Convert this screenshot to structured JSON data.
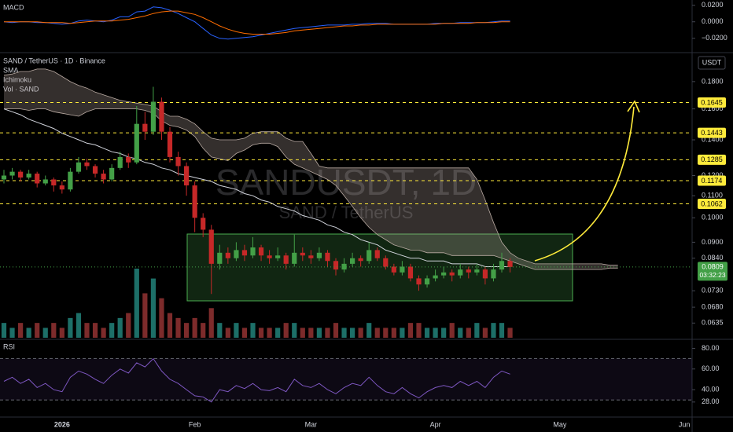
{
  "chart_data": [
    {
      "type": "line",
      "title": "MACD",
      "ylim": [
        -0.0345,
        0.0245
      ],
      "yticks": [
        {
          "value": 0.02,
          "label": "0.0200"
        },
        {
          "value": 0,
          "label": "0.0000"
        },
        {
          "value": -0.02,
          "label": "−0.0200"
        }
      ],
      "series": [
        {
          "color": "#2962ff",
          "values": [
            0,
            -0.001,
            0,
            0,
            -0.001,
            -0.001,
            -0.002,
            -0.003,
            -0.002,
            0.001,
            0.002,
            0.001,
            0,
            0.002,
            0.006,
            0.006,
            0.012,
            0.013,
            0.018,
            0.017,
            0.014,
            0.01,
            0.005,
            0,
            -0.008,
            -0.016,
            -0.02,
            -0.021,
            -0.02,
            -0.019,
            -0.018,
            -0.016,
            -0.014,
            -0.012,
            -0.01,
            -0.008,
            -0.007,
            -0.006,
            -0.005,
            -0.004,
            -0.004,
            -0.004,
            -0.003,
            -0.003,
            -0.002,
            -0.002,
            -0.002,
            -0.003,
            -0.003,
            -0.003,
            -0.003,
            -0.003,
            -0.002,
            -0.002,
            -0.002,
            -0.001,
            -0.001,
            -0.001,
            -0.001,
            0,
            0.001,
            0.001,
            null,
            null,
            null,
            null,
            null,
            null,
            null,
            null,
            null,
            null,
            null,
            null,
            null,
            null,
            null,
            null,
            null,
            null,
            null,
            null,
            null
          ]
        },
        {
          "color": "#ff6d00",
          "values": [
            0,
            0,
            0,
            0,
            0,
            -0.001,
            -0.001,
            -0.001,
            -0.002,
            -0.001,
            0,
            0.001,
            0.001,
            0.001,
            0.002,
            0.003,
            0.005,
            0.007,
            0.01,
            0.012,
            0.013,
            0.013,
            0.011,
            0.009,
            0.005,
            0,
            -0.005,
            -0.009,
            -0.012,
            -0.014,
            -0.015,
            -0.015,
            -0.015,
            -0.014,
            -0.013,
            -0.011,
            -0.01,
            -0.009,
            -0.008,
            -0.007,
            -0.006,
            -0.005,
            -0.005,
            -0.004,
            -0.004,
            -0.003,
            -0.003,
            -0.003,
            -0.003,
            -0.003,
            -0.003,
            -0.003,
            -0.003,
            -0.002,
            -0.002,
            -0.002,
            -0.002,
            -0.001,
            -0.001,
            -0.001,
            0,
            0,
            null,
            null,
            null,
            null,
            null,
            null,
            null,
            null,
            null,
            null,
            null,
            null,
            null,
            null,
            null,
            null,
            null,
            null,
            null,
            null,
            null
          ]
        }
      ]
    },
    {
      "type": "candlestick",
      "title": "SAND / TetherUS · 1D · Binance",
      "indicators": [
        "SMA",
        "Ichimoku",
        "Vol · SAND"
      ],
      "watermark": [
        "SANDUSDT, 1D",
        "SAND / TetherUS"
      ],
      "currency": "USDT",
      "log_scale": true,
      "ylim": [
        0.0596,
        0.2019
      ],
      "yticks": [
        {
          "value": 0.18,
          "label": "0.1800"
        },
        {
          "value": 0.16,
          "label": "0.1600"
        },
        {
          "value": 0.14,
          "label": "0.1400"
        },
        {
          "value": 0.12,
          "label": "0.1200"
        },
        {
          "value": 0.11,
          "label": "0.1100"
        },
        {
          "value": 0.1,
          "label": "0.1000"
        },
        {
          "value": 0.09,
          "label": "0.0900"
        },
        {
          "value": 0.084,
          "label": "0.0840"
        },
        {
          "value": 0.073,
          "label": "0.0730"
        },
        {
          "value": 0.068,
          "label": "0.0680"
        },
        {
          "value": 0.0635,
          "label": "0.0635"
        }
      ],
      "levels": [
        0.1645,
        0.1443,
        0.1285,
        0.1174,
        0.1062
      ],
      "level_color": "#ffeb3b",
      "last_price": 0.0809,
      "countdown": "03:32:23",
      "up_color": "#43a047",
      "down_color": "#c62828",
      "volume_up_color": "#1d6f68",
      "volume_down_color": "#7d2b2b",
      "categories": [
        null,
        null,
        null,
        null,
        null,
        null,
        null,
        "2026",
        null,
        null,
        null,
        null,
        null,
        null,
        null,
        null,
        null,
        null,
        null,
        null,
        null,
        null,
        null,
        "Feb",
        null,
        null,
        null,
        null,
        null,
        null,
        null,
        null,
        null,
        null,
        null,
        null,
        null,
        "Mar",
        null,
        null,
        null,
        null,
        null,
        null,
        null,
        null,
        null,
        null,
        null,
        null,
        null,
        null,
        "Apr",
        null,
        null,
        null,
        null,
        null,
        null,
        null,
        null,
        null,
        null,
        null,
        null,
        null,
        null,
        "May",
        null,
        null,
        null,
        null,
        null,
        null,
        null,
        null,
        null,
        null,
        null,
        null,
        null,
        null,
        "Jun"
      ],
      "ohlc": [
        [
          0.118,
          0.123,
          0.116,
          0.12
        ],
        [
          0.12,
          0.124,
          0.118,
          0.122
        ],
        [
          0.122,
          0.123,
          0.117,
          0.119
        ],
        [
          0.119,
          0.123,
          0.118,
          0.121
        ],
        [
          0.121,
          0.122,
          0.114,
          0.116
        ],
        [
          0.116,
          0.12,
          0.115,
          0.118
        ],
        [
          0.118,
          0.119,
          0.112,
          0.115
        ],
        [
          0.115,
          0.117,
          0.111,
          0.113
        ],
        [
          0.113,
          0.124,
          0.112,
          0.122
        ],
        [
          0.122,
          0.13,
          0.121,
          0.127
        ],
        [
          0.127,
          0.129,
          0.123,
          0.125
        ],
        [
          0.125,
          0.126,
          0.119,
          0.121
        ],
        [
          0.121,
          0.123,
          0.116,
          0.118
        ],
        [
          0.118,
          0.126,
          0.117,
          0.124
        ],
        [
          0.124,
          0.133,
          0.123,
          0.13
        ],
        [
          0.13,
          0.132,
          0.124,
          0.127
        ],
        [
          0.127,
          0.162,
          0.126,
          0.15
        ],
        [
          0.15,
          0.158,
          0.14,
          0.145
        ],
        [
          0.145,
          0.176,
          0.143,
          0.165
        ],
        [
          0.165,
          0.168,
          0.14,
          0.145
        ],
        [
          0.145,
          0.148,
          0.127,
          0.13
        ],
        [
          0.13,
          0.133,
          0.12,
          0.125
        ],
        [
          0.125,
          0.127,
          0.11,
          0.115
        ],
        [
          0.115,
          0.117,
          0.094,
          0.1
        ],
        [
          0.1,
          0.102,
          0.092,
          0.095
        ],
        [
          0.095,
          0.097,
          0.072,
          0.082
        ],
        [
          0.082,
          0.089,
          0.08,
          0.086
        ],
        [
          0.086,
          0.088,
          0.082,
          0.084
        ],
        [
          0.084,
          0.09,
          0.083,
          0.087
        ],
        [
          0.087,
          0.089,
          0.083,
          0.085
        ],
        [
          0.085,
          0.092,
          0.084,
          0.088
        ],
        [
          0.088,
          0.089,
          0.083,
          0.085
        ],
        [
          0.085,
          0.087,
          0.082,
          0.084
        ],
        [
          0.084,
          0.088,
          0.083,
          0.085
        ],
        [
          0.085,
          0.086,
          0.08,
          0.082
        ],
        [
          0.082,
          0.093,
          0.081,
          0.086
        ],
        [
          0.086,
          0.088,
          0.083,
          0.085
        ],
        [
          0.085,
          0.087,
          0.082,
          0.084
        ],
        [
          0.084,
          0.088,
          0.083,
          0.086
        ],
        [
          0.086,
          0.087,
          0.081,
          0.083
        ],
        [
          0.083,
          0.084,
          0.078,
          0.08
        ],
        [
          0.08,
          0.084,
          0.079,
          0.082
        ],
        [
          0.082,
          0.086,
          0.081,
          0.084
        ],
        [
          0.084,
          0.085,
          0.081,
          0.083
        ],
        [
          0.083,
          0.09,
          0.082,
          0.087
        ],
        [
          0.087,
          0.088,
          0.083,
          0.084
        ],
        [
          0.084,
          0.085,
          0.08,
          0.081
        ],
        [
          0.081,
          0.082,
          0.078,
          0.079
        ],
        [
          0.079,
          0.083,
          0.078,
          0.081
        ],
        [
          0.081,
          0.082,
          0.076,
          0.077
        ],
        [
          0.077,
          0.078,
          0.073,
          0.075
        ],
        [
          0.075,
          0.078,
          0.074,
          0.077
        ],
        [
          0.077,
          0.08,
          0.076,
          0.078
        ],
        [
          0.078,
          0.081,
          0.077,
          0.079
        ],
        [
          0.079,
          0.08,
          0.076,
          0.078
        ],
        [
          0.078,
          0.082,
          0.077,
          0.08
        ],
        [
          0.08,
          0.081,
          0.077,
          0.079
        ],
        [
          0.079,
          0.082,
          0.078,
          0.08
        ],
        [
          0.08,
          0.081,
          0.075,
          0.077
        ],
        [
          0.077,
          0.082,
          0.076,
          0.08
        ],
        [
          0.08,
          0.086,
          0.079,
          0.083
        ],
        [
          0.083,
          0.084,
          0.079,
          0.0809
        ],
        null,
        null,
        null,
        null,
        null,
        null,
        null,
        null,
        null,
        null,
        null,
        null,
        null,
        null,
        null,
        null,
        null,
        null,
        null,
        null,
        null
      ],
      "volume": [
        3,
        2,
        3,
        2,
        3,
        2,
        3,
        2,
        4,
        5,
        3,
        3,
        2,
        3,
        4,
        5,
        14,
        9,
        12,
        8,
        5,
        4,
        3,
        4,
        3,
        6,
        3,
        2,
        3,
        2,
        3,
        2,
        2,
        2,
        3,
        3,
        2,
        2,
        2,
        2,
        3,
        2,
        2,
        2,
        3,
        2,
        2,
        2,
        2,
        3,
        3,
        2,
        2,
        2,
        3,
        2,
        2,
        3,
        2,
        3,
        3,
        2,
        null,
        null,
        null,
        null,
        null,
        null,
        null,
        null,
        null,
        null,
        null,
        null,
        null,
        null,
        null,
        null,
        null,
        null,
        null,
        null,
        null
      ],
      "sma": {
        "color": "#d1d4dc",
        "values": [
          0.16,
          0.158,
          0.156,
          0.153,
          0.151,
          0.149,
          0.147,
          0.144,
          0.142,
          0.14,
          0.138,
          0.137,
          0.135,
          0.133,
          0.132,
          0.13,
          0.129,
          0.127,
          0.126,
          0.124,
          0.123,
          0.121,
          0.12,
          0.119,
          0.118,
          0.117,
          0.115,
          0.114,
          0.113,
          0.111,
          0.11,
          0.108,
          0.107,
          0.105,
          0.104,
          0.103,
          0.101,
          0.1,
          0.099,
          0.097,
          0.096,
          0.094,
          0.093,
          0.091,
          0.09,
          0.089,
          0.087,
          0.086,
          0.085,
          0.084,
          0.084,
          0.083,
          0.083,
          0.083,
          0.082,
          0.082,
          0.082,
          0.082,
          0.081,
          0.081,
          0.081,
          0.081,
          null,
          null,
          null,
          null,
          null,
          null,
          null,
          null,
          null,
          null,
          null,
          null,
          null,
          null,
          null,
          null,
          null,
          null,
          null,
          null,
          null
        ]
      },
      "cloud": {
        "color": "#b9aaa2",
        "upper": [
          0.185,
          0.186,
          0.188,
          0.188,
          0.19,
          0.19,
          0.188,
          0.184,
          0.18,
          0.177,
          0.175,
          0.172,
          0.17,
          0.168,
          0.166,
          0.165,
          0.164,
          0.163,
          0.162,
          0.158,
          0.155,
          0.155,
          0.153,
          0.15,
          0.145,
          0.141,
          0.14,
          0.14,
          0.14,
          0.141,
          0.144,
          0.145,
          0.145,
          0.145,
          0.141,
          0.139,
          0.139,
          0.132,
          0.125,
          0.124,
          0.124,
          0.124,
          0.124,
          0.124,
          0.124,
          0.124,
          0.124,
          0.124,
          0.124,
          0.124,
          0.124,
          0.124,
          0.124,
          0.124,
          0.124,
          0.124,
          0.124,
          0.118,
          0.108,
          0.098,
          0.09,
          0.086,
          0.084,
          0.083,
          0.082,
          0.082,
          0.082,
          0.082,
          0.082,
          0.082,
          0.082,
          0.082,
          0.082,
          0.0815,
          0.0815,
          null,
          null,
          null,
          null,
          null,
          null,
          null,
          null
        ],
        "lower": [
          0.16,
          0.16,
          0.16,
          0.159,
          0.16,
          0.16,
          0.158,
          0.157,
          0.156,
          0.155,
          0.158,
          0.16,
          0.16,
          0.16,
          0.16,
          0.16,
          0.16,
          0.159,
          0.157,
          0.152,
          0.149,
          0.148,
          0.146,
          0.142,
          0.135,
          0.13,
          0.129,
          0.128,
          0.132,
          0.134,
          0.137,
          0.138,
          0.138,
          0.136,
          0.13,
          0.126,
          0.124,
          0.122,
          0.12,
          0.118,
          0.115,
          0.11,
          0.105,
          0.1,
          0.096,
          0.093,
          0.091,
          0.089,
          0.088,
          0.087,
          0.087,
          0.086,
          0.086,
          0.086,
          0.085,
          0.085,
          0.085,
          0.085,
          0.085,
          0.085,
          0.084,
          0.083,
          0.082,
          0.081,
          0.08,
          0.08,
          0.08,
          0.08,
          0.08,
          0.08,
          0.08,
          0.08,
          0.08,
          0.0805,
          0.0805,
          null,
          null,
          null,
          null,
          null,
          null,
          null,
          null
        ]
      }
    },
    {
      "type": "line",
      "title": "RSI",
      "ylim": [
        15.7,
        85.7
      ],
      "yticks": [
        {
          "value": 80,
          "label": "80.00"
        },
        {
          "value": 60,
          "label": "60.00"
        },
        {
          "value": 40,
          "label": "40.00"
        },
        {
          "value": 28,
          "label": "28.00"
        }
      ],
      "bands": [
        30,
        70
      ],
      "series": [
        {
          "color": "#7e57c2",
          "values": [
            48,
            52,
            46,
            50,
            42,
            46,
            40,
            38,
            52,
            58,
            55,
            50,
            46,
            54,
            60,
            56,
            66,
            62,
            70,
            58,
            50,
            46,
            40,
            34,
            33,
            28,
            40,
            38,
            44,
            41,
            46,
            40,
            39,
            42,
            38,
            50,
            44,
            42,
            46,
            40,
            36,
            42,
            46,
            44,
            52,
            44,
            38,
            36,
            42,
            36,
            32,
            38,
            42,
            44,
            42,
            48,
            44,
            48,
            42,
            52,
            58,
            55,
            null,
            null,
            null,
            null,
            null,
            null,
            null,
            null,
            null,
            null,
            null,
            null,
            null,
            null,
            null,
            null,
            null,
            null,
            null,
            null,
            null
          ]
        }
      ]
    }
  ]
}
